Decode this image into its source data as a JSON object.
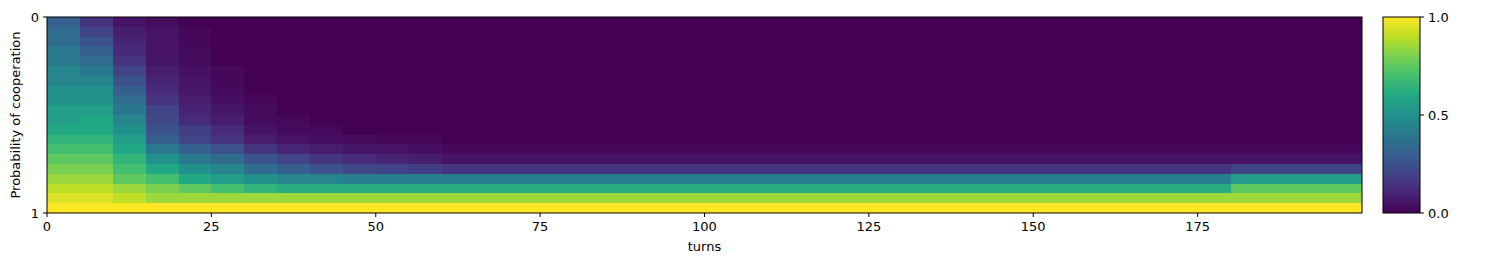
{
  "chart_data": {
    "type": "heatmap",
    "xlabel": "turns",
    "ylabel": "Probability of cooperation",
    "xlim": [
      0,
      200
    ],
    "ylim": [
      1,
      0
    ],
    "xticks": [
      0,
      25,
      50,
      75,
      100,
      125,
      150,
      175
    ],
    "yticks": [
      0,
      1
    ],
    "x_bins": [
      0,
      5,
      10,
      15,
      20,
      25,
      30,
      35,
      40,
      45,
      50,
      55,
      60,
      65,
      70,
      75,
      80,
      85,
      90,
      95,
      100,
      105,
      110,
      115,
      120,
      125,
      130,
      135,
      140,
      145,
      150,
      155,
      160,
      165,
      170,
      175,
      180,
      185,
      190,
      195,
      200
    ],
    "y_bins": [
      0,
      0.05,
      0.1,
      0.15,
      0.2,
      0.25,
      0.3,
      0.35,
      0.4,
      0.45,
      0.5,
      0.55,
      0.6,
      0.65,
      0.7,
      0.75,
      0.8,
      0.85,
      0.9,
      0.95,
      1
    ],
    "values": [
      [
        0.3,
        0.15,
        0.05,
        0.03,
        0,
        0,
        0,
        0,
        0,
        0,
        0,
        0,
        0,
        0,
        0,
        0,
        0,
        0,
        0,
        0,
        0,
        0,
        0,
        0,
        0,
        0,
        0,
        0,
        0,
        0,
        0,
        0,
        0,
        0,
        0,
        0,
        0,
        0,
        0,
        0
      ],
      [
        0.35,
        0.2,
        0.08,
        0.05,
        0.02,
        0,
        0,
        0,
        0,
        0,
        0,
        0,
        0,
        0,
        0,
        0,
        0,
        0,
        0,
        0,
        0,
        0,
        0,
        0,
        0,
        0,
        0,
        0,
        0,
        0,
        0,
        0,
        0,
        0,
        0,
        0,
        0,
        0,
        0,
        0
      ],
      [
        0.35,
        0.25,
        0.1,
        0.05,
        0.02,
        0,
        0,
        0,
        0,
        0,
        0,
        0,
        0,
        0,
        0,
        0,
        0,
        0,
        0,
        0,
        0,
        0,
        0,
        0,
        0,
        0,
        0,
        0,
        0,
        0,
        0,
        0,
        0,
        0,
        0,
        0,
        0,
        0,
        0,
        0
      ],
      [
        0.4,
        0.3,
        0.12,
        0.05,
        0.03,
        0,
        0,
        0,
        0,
        0,
        0,
        0,
        0,
        0,
        0,
        0,
        0,
        0,
        0,
        0,
        0,
        0,
        0,
        0,
        0,
        0,
        0,
        0,
        0,
        0,
        0,
        0,
        0,
        0,
        0,
        0,
        0,
        0,
        0,
        0
      ],
      [
        0.4,
        0.35,
        0.15,
        0.06,
        0.03,
        0,
        0,
        0,
        0,
        0,
        0,
        0,
        0,
        0,
        0,
        0,
        0,
        0,
        0,
        0,
        0,
        0,
        0,
        0,
        0,
        0,
        0,
        0,
        0,
        0,
        0,
        0,
        0,
        0,
        0,
        0,
        0,
        0,
        0,
        0
      ],
      [
        0.45,
        0.4,
        0.2,
        0.08,
        0.04,
        0.02,
        0,
        0,
        0,
        0,
        0,
        0,
        0,
        0,
        0,
        0,
        0,
        0,
        0,
        0,
        0,
        0,
        0,
        0,
        0,
        0,
        0,
        0,
        0,
        0,
        0,
        0,
        0,
        0,
        0,
        0,
        0,
        0,
        0,
        0
      ],
      [
        0.45,
        0.45,
        0.25,
        0.1,
        0.05,
        0.02,
        0,
        0,
        0,
        0,
        0,
        0,
        0,
        0,
        0,
        0,
        0,
        0,
        0,
        0,
        0,
        0,
        0,
        0,
        0,
        0,
        0,
        0,
        0,
        0,
        0,
        0,
        0,
        0,
        0,
        0,
        0,
        0,
        0,
        0
      ],
      [
        0.5,
        0.5,
        0.3,
        0.12,
        0.06,
        0.03,
        0,
        0,
        0,
        0,
        0,
        0,
        0,
        0,
        0,
        0,
        0,
        0,
        0,
        0,
        0,
        0,
        0,
        0,
        0,
        0,
        0,
        0,
        0,
        0,
        0,
        0,
        0,
        0,
        0,
        0,
        0,
        0,
        0,
        0
      ],
      [
        0.5,
        0.5,
        0.35,
        0.15,
        0.08,
        0.04,
        0.02,
        0,
        0,
        0,
        0,
        0,
        0,
        0,
        0,
        0,
        0,
        0,
        0,
        0,
        0,
        0,
        0,
        0,
        0,
        0,
        0,
        0,
        0,
        0,
        0,
        0,
        0,
        0,
        0,
        0,
        0,
        0,
        0,
        0
      ],
      [
        0.55,
        0.55,
        0.4,
        0.2,
        0.1,
        0.06,
        0.03,
        0,
        0,
        0,
        0,
        0,
        0,
        0,
        0,
        0,
        0,
        0,
        0,
        0,
        0,
        0,
        0,
        0,
        0,
        0,
        0,
        0,
        0,
        0,
        0,
        0,
        0,
        0,
        0,
        0,
        0,
        0,
        0,
        0
      ],
      [
        0.55,
        0.6,
        0.45,
        0.22,
        0.12,
        0.08,
        0.03,
        0.02,
        0,
        0,
        0,
        0,
        0,
        0,
        0,
        0,
        0,
        0,
        0,
        0,
        0,
        0,
        0,
        0,
        0,
        0,
        0,
        0,
        0,
        0,
        0,
        0,
        0,
        0,
        0,
        0,
        0,
        0,
        0,
        0
      ],
      [
        0.6,
        0.6,
        0.5,
        0.25,
        0.18,
        0.12,
        0.05,
        0.03,
        0.02,
        0,
        0,
        0,
        0,
        0,
        0,
        0,
        0,
        0,
        0,
        0,
        0,
        0,
        0,
        0,
        0,
        0,
        0,
        0,
        0,
        0,
        0,
        0,
        0,
        0,
        0,
        0,
        0,
        0,
        0,
        0
      ],
      [
        0.65,
        0.65,
        0.55,
        0.3,
        0.2,
        0.15,
        0.08,
        0.05,
        0.04,
        0.03,
        0.02,
        0.02,
        0,
        0,
        0,
        0,
        0,
        0,
        0,
        0,
        0,
        0,
        0,
        0,
        0,
        0,
        0,
        0,
        0,
        0,
        0,
        0,
        0,
        0,
        0,
        0,
        0,
        0,
        0,
        0
      ],
      [
        0.7,
        0.7,
        0.6,
        0.4,
        0.3,
        0.25,
        0.15,
        0.1,
        0.08,
        0.06,
        0.05,
        0.04,
        0.02,
        0.02,
        0.02,
        0.02,
        0.02,
        0.02,
        0.02,
        0.02,
        0.02,
        0.02,
        0.02,
        0.02,
        0.02,
        0.02,
        0.02,
        0.02,
        0.02,
        0.02,
        0.02,
        0.02,
        0.02,
        0.02,
        0.02,
        0.02,
        0.02,
        0.02,
        0.02,
        0.02
      ],
      [
        0.75,
        0.75,
        0.65,
        0.5,
        0.4,
        0.35,
        0.25,
        0.2,
        0.15,
        0.12,
        0.1,
        0.08,
        0.05,
        0.05,
        0.05,
        0.05,
        0.05,
        0.05,
        0.05,
        0.05,
        0.05,
        0.05,
        0.05,
        0.05,
        0.05,
        0.05,
        0.05,
        0.05,
        0.05,
        0.05,
        0.05,
        0.05,
        0.05,
        0.05,
        0.05,
        0.05,
        0.05,
        0.05,
        0.05,
        0.05
      ],
      [
        0.8,
        0.8,
        0.7,
        0.6,
        0.5,
        0.45,
        0.35,
        0.3,
        0.25,
        0.22,
        0.2,
        0.18,
        0.15,
        0.15,
        0.15,
        0.15,
        0.15,
        0.15,
        0.15,
        0.15,
        0.15,
        0.15,
        0.15,
        0.15,
        0.15,
        0.15,
        0.15,
        0.15,
        0.15,
        0.15,
        0.15,
        0.15,
        0.15,
        0.15,
        0.15,
        0.15,
        0.2,
        0.2,
        0.2,
        0.2
      ],
      [
        0.85,
        0.85,
        0.75,
        0.7,
        0.6,
        0.55,
        0.5,
        0.45,
        0.45,
        0.42,
        0.42,
        0.42,
        0.42,
        0.42,
        0.42,
        0.42,
        0.42,
        0.42,
        0.42,
        0.42,
        0.42,
        0.42,
        0.42,
        0.42,
        0.42,
        0.42,
        0.42,
        0.42,
        0.42,
        0.42,
        0.42,
        0.42,
        0.42,
        0.42,
        0.42,
        0.42,
        0.55,
        0.55,
        0.55,
        0.55
      ],
      [
        0.9,
        0.9,
        0.85,
        0.8,
        0.75,
        0.7,
        0.65,
        0.62,
        0.62,
        0.62,
        0.62,
        0.62,
        0.62,
        0.62,
        0.62,
        0.62,
        0.62,
        0.62,
        0.62,
        0.62,
        0.62,
        0.62,
        0.62,
        0.62,
        0.62,
        0.62,
        0.62,
        0.62,
        0.62,
        0.62,
        0.62,
        0.62,
        0.62,
        0.62,
        0.62,
        0.62,
        0.75,
        0.75,
        0.75,
        0.75
      ],
      [
        0.95,
        0.95,
        0.9,
        0.85,
        0.85,
        0.85,
        0.85,
        0.85,
        0.85,
        0.85,
        0.85,
        0.85,
        0.85,
        0.85,
        0.85,
        0.85,
        0.85,
        0.85,
        0.85,
        0.85,
        0.85,
        0.85,
        0.85,
        0.85,
        0.85,
        0.85,
        0.85,
        0.85,
        0.85,
        0.85,
        0.85,
        0.85,
        0.85,
        0.85,
        0.85,
        0.85,
        0.85,
        0.85,
        0.85,
        0.85
      ],
      [
        1,
        1,
        1,
        1,
        1,
        1,
        1,
        1,
        1,
        1,
        1,
        1,
        1,
        1,
        1,
        1,
        1,
        1,
        1,
        1,
        1,
        1,
        1,
        1,
        1,
        1,
        1,
        1,
        1,
        1,
        1,
        1,
        1,
        1,
        1,
        1,
        1,
        1,
        1,
        1
      ]
    ],
    "colorbar_range": [
      0,
      1
    ],
    "colorbar_ticks": [
      {
        "value": 0,
        "label": "0.0"
      },
      {
        "value": 0.5,
        "label": "0.5"
      },
      {
        "value": 1,
        "label": "1.0"
      }
    ]
  }
}
